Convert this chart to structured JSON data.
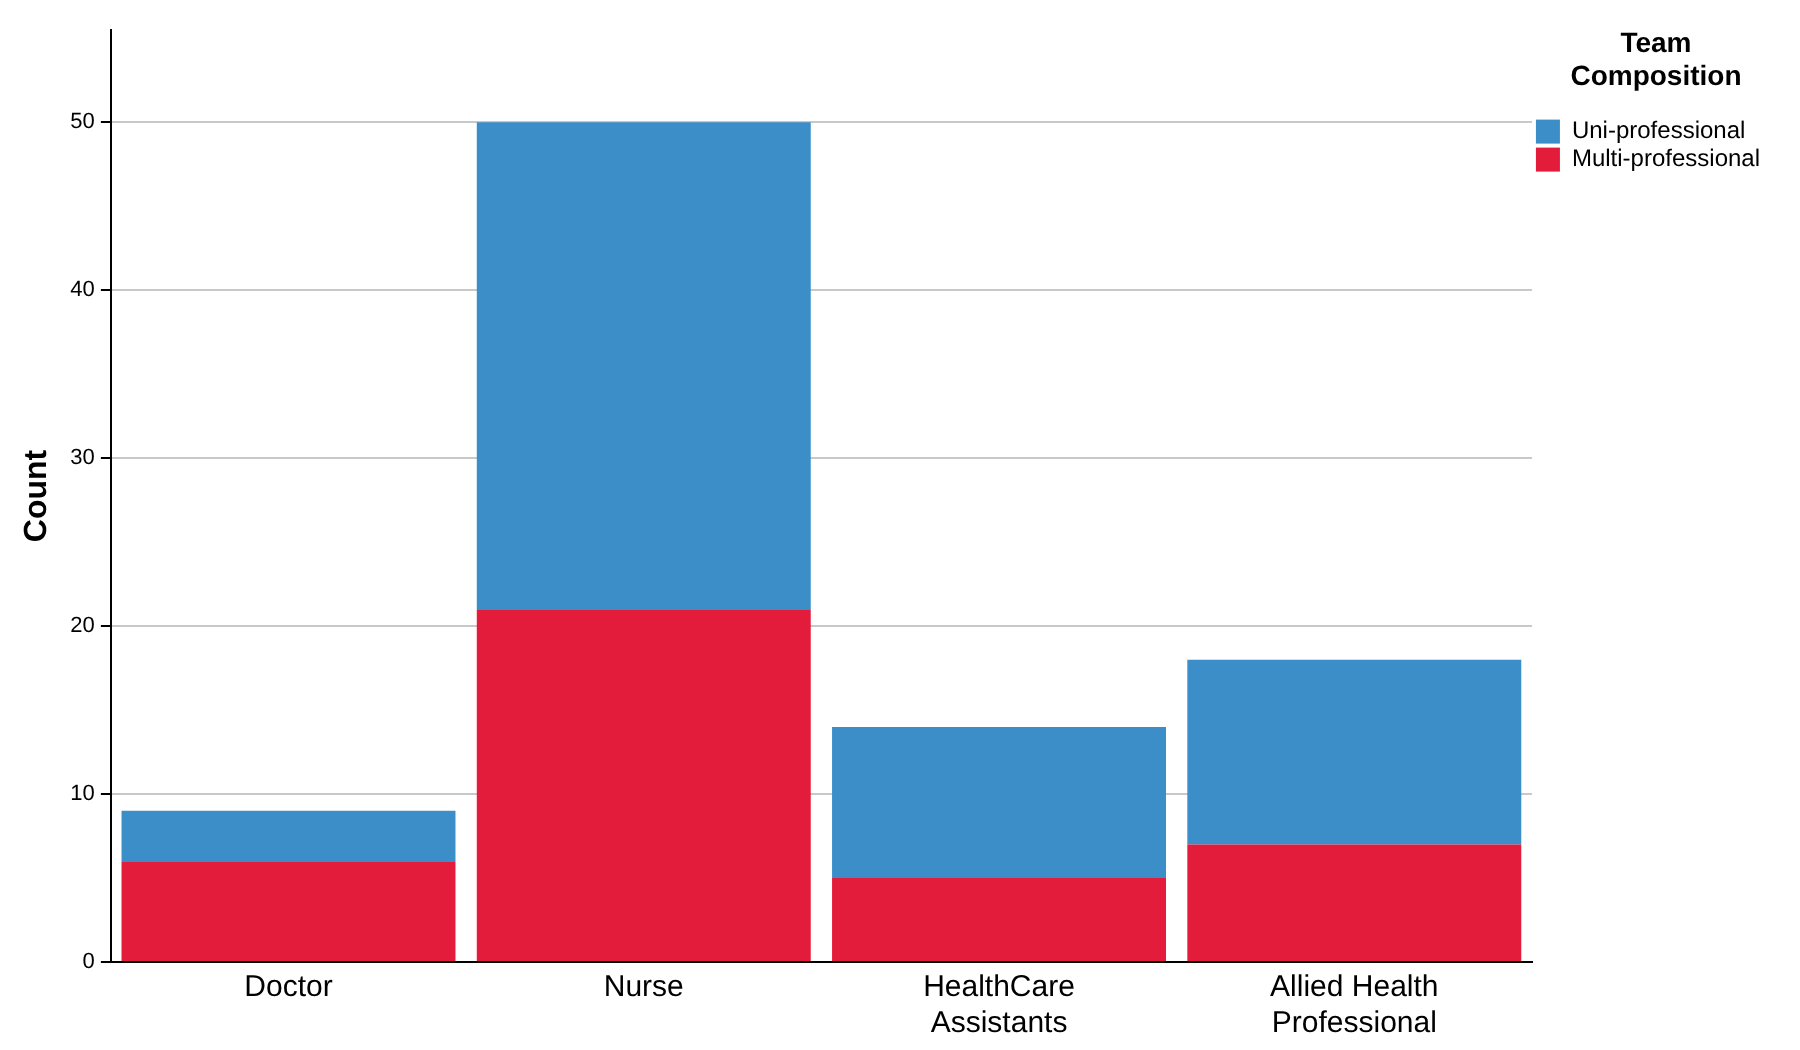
{
  "chart_data": {
    "type": "bar",
    "stacked": true,
    "ylabel": "Count",
    "legend_title": "Team Composition",
    "legend": "top right",
    "grid": "y",
    "categories": [
      "Doctor",
      "Nurse",
      "HealthCare Assistants",
      "Allied Health Professional"
    ],
    "series": [
      {
        "name": "Multi-professional",
        "color": "#e31c3c",
        "values": [
          6,
          21,
          5,
          7
        ]
      },
      {
        "name": "Uni-professional",
        "color": "#3b8ec8",
        "values": [
          3,
          29,
          9,
          11
        ]
      }
    ],
    "ylim": [
      0,
      55.5
    ],
    "yticks": [
      0,
      10,
      20,
      30,
      40,
      50
    ]
  }
}
